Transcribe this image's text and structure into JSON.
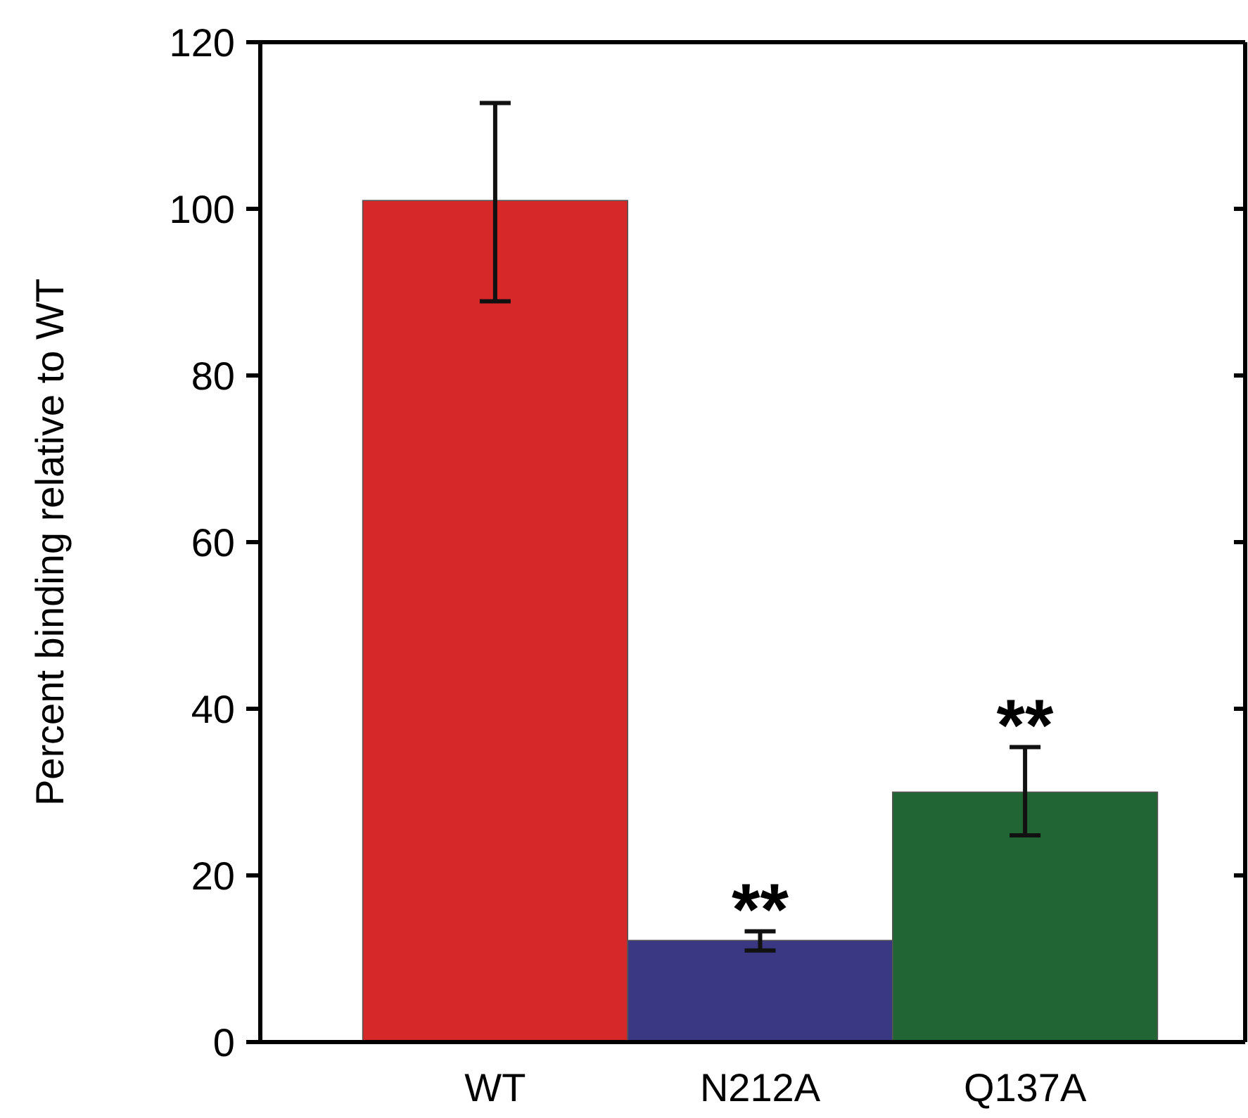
{
  "chart_data": {
    "type": "bar",
    "ylabel": "Percent binding relative to WT",
    "categories": [
      "WT",
      "N212A",
      "Q137A"
    ],
    "values": [
      101,
      12.2,
      30
    ],
    "colors": [
      "#d62828",
      "#3b3883",
      "#216535"
    ],
    "errors": [
      [
        88.9,
        112.7
      ],
      [
        11,
        13.3
      ],
      [
        24.8,
        35.4
      ]
    ],
    "ylim": [
      0,
      120
    ],
    "yticks": [
      0,
      20,
      40,
      60,
      80,
      100,
      120
    ],
    "grid": false,
    "annotations": [
      {
        "text": "**",
        "x": "N212A",
        "y": 13.3
      },
      {
        "text": "**",
        "x": "Q137A",
        "y": 35.4
      }
    ]
  }
}
